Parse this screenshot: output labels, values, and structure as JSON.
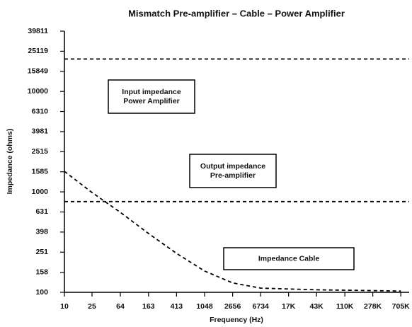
{
  "chart_data": {
    "type": "line",
    "title": "Mismatch Pre-amplifier – Cable – Power Amplifier",
    "x_label": "Frequency (Hz)",
    "y_label": "Impedance (ohms)",
    "xscale": "log",
    "yscale": "log",
    "xlim": [
      10,
      930000
    ],
    "ylim": [
      100,
      39811
    ],
    "xticks": [
      10,
      25,
      64,
      163,
      413,
      1048,
      2656,
      6734,
      {
        "value": 17000,
        "label": "17K"
      },
      {
        "value": 43000,
        "label": "43K"
      },
      {
        "value": 110000,
        "label": "110K"
      },
      {
        "value": 278000,
        "label": "278K"
      },
      {
        "value": 705000,
        "label": "705K"
      }
    ],
    "yticks": [
      100,
      158,
      251,
      398,
      631,
      1000,
      1585,
      2515,
      3981,
      6310,
      10000,
      15849,
      25119,
      39811
    ],
    "series": [
      {
        "color": "#000000",
        "x": [
          10,
          930000
        ],
        "values": [
          21000,
          21000
        ]
      },
      {
        "color": "#000000",
        "x": [
          10,
          930000
        ],
        "values": [
          800,
          800
        ]
      },
      {
        "color": "#000000",
        "x": [
          10,
          25,
          64,
          163,
          413,
          1048,
          2656,
          6734,
          17000,
          43000,
          110000,
          278000,
          705000
        ],
        "values": [
          1600,
          985,
          625,
          385,
          244,
          163,
          124,
          110,
          108,
          106,
          105,
          104,
          103
        ]
      }
    ],
    "annotations": [
      {
        "lines": [
          "Input impedance",
          "Power Amplifier"
        ]
      },
      {
        "lines": [
          "Output impedance",
          "Pre-amplifier"
        ]
      },
      {
        "lines": [
          "Impedance Cable"
        ]
      }
    ]
  }
}
